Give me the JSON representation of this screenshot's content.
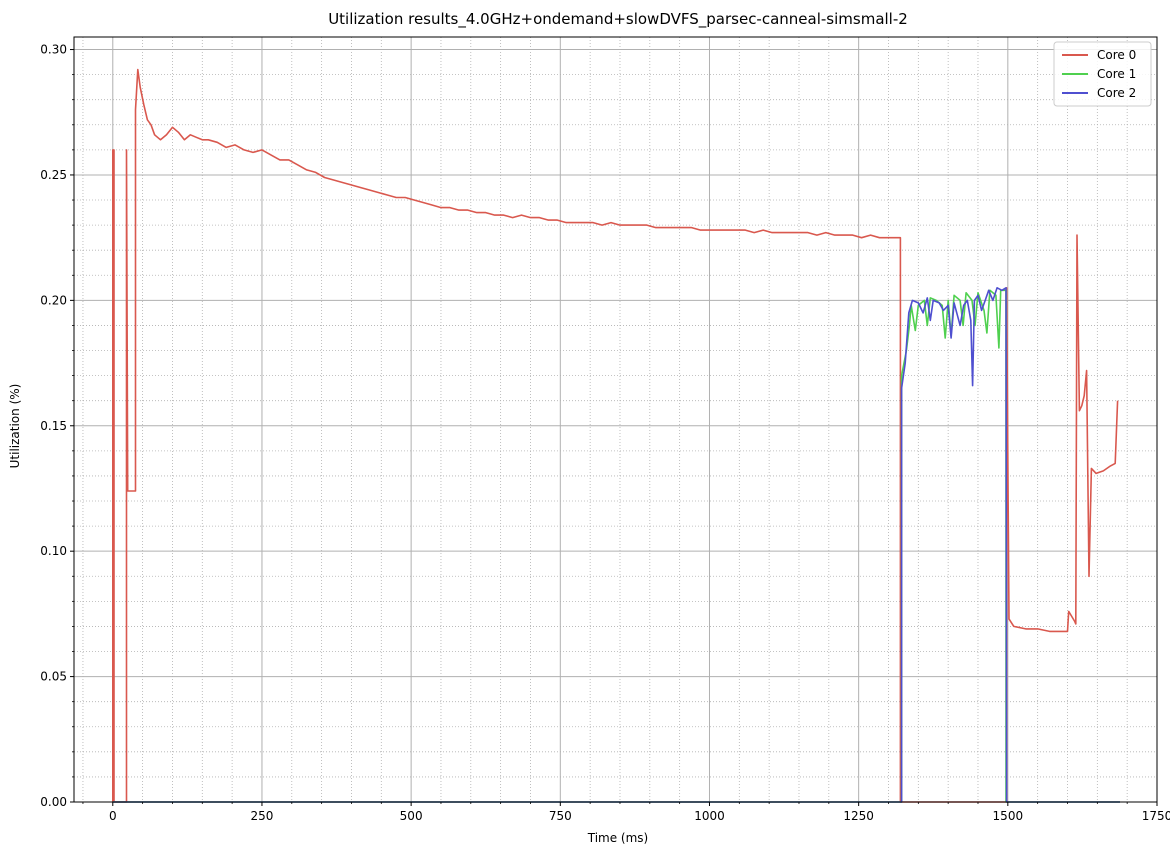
{
  "chart_data": {
    "type": "line",
    "title": "Utilization results_4.0GHz+ondemand+slowDVFS_parsec-canneal-simsmall-2",
    "xlabel": "Time (ms)",
    "ylabel": "Utilization (%)",
    "xlim": [
      -65,
      1750
    ],
    "ylim": [
      0,
      0.305
    ],
    "xticks": [
      0,
      250,
      500,
      750,
      1000,
      1250,
      1500,
      1750
    ],
    "xtick_labels": [
      "0",
      "250",
      "500",
      "750",
      "1000",
      "1250",
      "1500",
      "1750"
    ],
    "yticks": [
      0.0,
      0.05,
      0.1,
      0.15,
      0.2,
      0.25,
      0.3
    ],
    "ytick_labels": [
      "0.00",
      "0.05",
      "0.10",
      "0.15",
      "0.20",
      "0.25",
      "0.30"
    ],
    "grid": true,
    "minor_grid": true,
    "legend_position": "top-right",
    "series": [
      {
        "name": "Core 0",
        "color": "#d9584e",
        "points": [
          [
            0,
            0
          ],
          [
            0,
            0.26
          ],
          [
            2,
            0.26
          ],
          [
            2,
            0
          ],
          [
            23,
            0
          ],
          [
            23,
            0.26
          ],
          [
            25,
            0.124
          ],
          [
            38,
            0.124
          ],
          [
            38,
            0.276
          ],
          [
            42,
            0.292
          ],
          [
            46,
            0.285
          ],
          [
            52,
            0.278
          ],
          [
            58,
            0.272
          ],
          [
            64,
            0.27
          ],
          [
            70,
            0.266
          ],
          [
            80,
            0.264
          ],
          [
            90,
            0.266
          ],
          [
            100,
            0.269
          ],
          [
            110,
            0.267
          ],
          [
            120,
            0.264
          ],
          [
            130,
            0.266
          ],
          [
            140,
            0.265
          ],
          [
            150,
            0.264
          ],
          [
            160,
            0.264
          ],
          [
            175,
            0.263
          ],
          [
            190,
            0.261
          ],
          [
            205,
            0.262
          ],
          [
            220,
            0.26
          ],
          [
            235,
            0.259
          ],
          [
            250,
            0.26
          ],
          [
            265,
            0.258
          ],
          [
            280,
            0.256
          ],
          [
            295,
            0.256
          ],
          [
            310,
            0.254
          ],
          [
            325,
            0.252
          ],
          [
            340,
            0.251
          ],
          [
            355,
            0.249
          ],
          [
            370,
            0.248
          ],
          [
            385,
            0.247
          ],
          [
            400,
            0.246
          ],
          [
            415,
            0.245
          ],
          [
            430,
            0.244
          ],
          [
            445,
            0.243
          ],
          [
            460,
            0.242
          ],
          [
            475,
            0.241
          ],
          [
            490,
            0.241
          ],
          [
            505,
            0.24
          ],
          [
            520,
            0.239
          ],
          [
            535,
            0.238
          ],
          [
            550,
            0.237
          ],
          [
            565,
            0.237
          ],
          [
            580,
            0.236
          ],
          [
            595,
            0.236
          ],
          [
            610,
            0.235
          ],
          [
            625,
            0.235
          ],
          [
            640,
            0.234
          ],
          [
            655,
            0.234
          ],
          [
            670,
            0.233
          ],
          [
            685,
            0.234
          ],
          [
            700,
            0.233
          ],
          [
            715,
            0.233
          ],
          [
            730,
            0.232
          ],
          [
            745,
            0.232
          ],
          [
            760,
            0.231
          ],
          [
            775,
            0.231
          ],
          [
            790,
            0.231
          ],
          [
            805,
            0.231
          ],
          [
            820,
            0.23
          ],
          [
            835,
            0.231
          ],
          [
            850,
            0.23
          ],
          [
            865,
            0.23
          ],
          [
            880,
            0.23
          ],
          [
            895,
            0.23
          ],
          [
            910,
            0.229
          ],
          [
            925,
            0.229
          ],
          [
            940,
            0.229
          ],
          [
            955,
            0.229
          ],
          [
            970,
            0.229
          ],
          [
            985,
            0.228
          ],
          [
            1000,
            0.228
          ],
          [
            1015,
            0.228
          ],
          [
            1030,
            0.228
          ],
          [
            1045,
            0.228
          ],
          [
            1060,
            0.228
          ],
          [
            1075,
            0.227
          ],
          [
            1090,
            0.228
          ],
          [
            1105,
            0.227
          ],
          [
            1120,
            0.227
          ],
          [
            1135,
            0.227
          ],
          [
            1150,
            0.227
          ],
          [
            1165,
            0.227
          ],
          [
            1180,
            0.226
          ],
          [
            1195,
            0.227
          ],
          [
            1210,
            0.226
          ],
          [
            1225,
            0.226
          ],
          [
            1240,
            0.226
          ],
          [
            1255,
            0.225
          ],
          [
            1270,
            0.226
          ],
          [
            1285,
            0.225
          ],
          [
            1300,
            0.225
          ],
          [
            1315,
            0.225
          ],
          [
            1320,
            0.225
          ],
          [
            1320,
            0.0
          ],
          [
            1498,
            0.0
          ],
          [
            1498,
            0.205
          ],
          [
            1502,
            0.073
          ],
          [
            1510,
            0.07
          ],
          [
            1530,
            0.069
          ],
          [
            1550,
            0.069
          ],
          [
            1570,
            0.068
          ],
          [
            1590,
            0.068
          ],
          [
            1600,
            0.068
          ],
          [
            1602,
            0.076
          ],
          [
            1612,
            0.072
          ],
          [
            1614,
            0.071
          ],
          [
            1616,
            0.226
          ],
          [
            1620,
            0.156
          ],
          [
            1624,
            0.158
          ],
          [
            1628,
            0.162
          ],
          [
            1632,
            0.172
          ],
          [
            1636,
            0.09
          ],
          [
            1640,
            0.133
          ],
          [
            1648,
            0.131
          ],
          [
            1660,
            0.132
          ],
          [
            1672,
            0.134
          ],
          [
            1680,
            0.135
          ],
          [
            1684,
            0.16
          ]
        ]
      },
      {
        "name": "Core 1",
        "color": "#4fd04f",
        "points": [
          [
            0,
            0
          ],
          [
            1322,
            0
          ],
          [
            1322,
            0.17
          ],
          [
            1330,
            0.18
          ],
          [
            1335,
            0.19
          ],
          [
            1338,
            0.198
          ],
          [
            1345,
            0.188
          ],
          [
            1350,
            0.198
          ],
          [
            1360,
            0.2
          ],
          [
            1365,
            0.19
          ],
          [
            1370,
            0.201
          ],
          [
            1380,
            0.2
          ],
          [
            1390,
            0.198
          ],
          [
            1395,
            0.185
          ],
          [
            1400,
            0.2
          ],
          [
            1405,
            0.186
          ],
          [
            1410,
            0.202
          ],
          [
            1420,
            0.2
          ],
          [
            1425,
            0.19
          ],
          [
            1430,
            0.203
          ],
          [
            1440,
            0.2
          ],
          [
            1445,
            0.19
          ],
          [
            1450,
            0.203
          ],
          [
            1460,
            0.196
          ],
          [
            1465,
            0.187
          ],
          [
            1470,
            0.204
          ],
          [
            1480,
            0.202
          ],
          [
            1485,
            0.181
          ],
          [
            1488,
            0.204
          ],
          [
            1497,
            0.204
          ],
          [
            1497,
            0
          ],
          [
            1688,
            0
          ]
        ]
      },
      {
        "name": "Core 2",
        "color": "#4f4fd0",
        "points": [
          [
            0,
            0
          ],
          [
            1322,
            0
          ],
          [
            1322,
            0.165
          ],
          [
            1328,
            0.175
          ],
          [
            1334,
            0.195
          ],
          [
            1340,
            0.2
          ],
          [
            1350,
            0.199
          ],
          [
            1358,
            0.195
          ],
          [
            1365,
            0.201
          ],
          [
            1370,
            0.192
          ],
          [
            1375,
            0.2
          ],
          [
            1385,
            0.199
          ],
          [
            1392,
            0.196
          ],
          [
            1400,
            0.198
          ],
          [
            1405,
            0.185
          ],
          [
            1410,
            0.199
          ],
          [
            1420,
            0.19
          ],
          [
            1426,
            0.198
          ],
          [
            1432,
            0.2
          ],
          [
            1438,
            0.192
          ],
          [
            1441,
            0.166
          ],
          [
            1444,
            0.2
          ],
          [
            1450,
            0.202
          ],
          [
            1456,
            0.196
          ],
          [
            1462,
            0.2
          ],
          [
            1468,
            0.204
          ],
          [
            1475,
            0.2
          ],
          [
            1482,
            0.205
          ],
          [
            1490,
            0.204
          ],
          [
            1497,
            0.205
          ],
          [
            1498,
            0
          ],
          [
            1688,
            0
          ]
        ]
      }
    ]
  }
}
